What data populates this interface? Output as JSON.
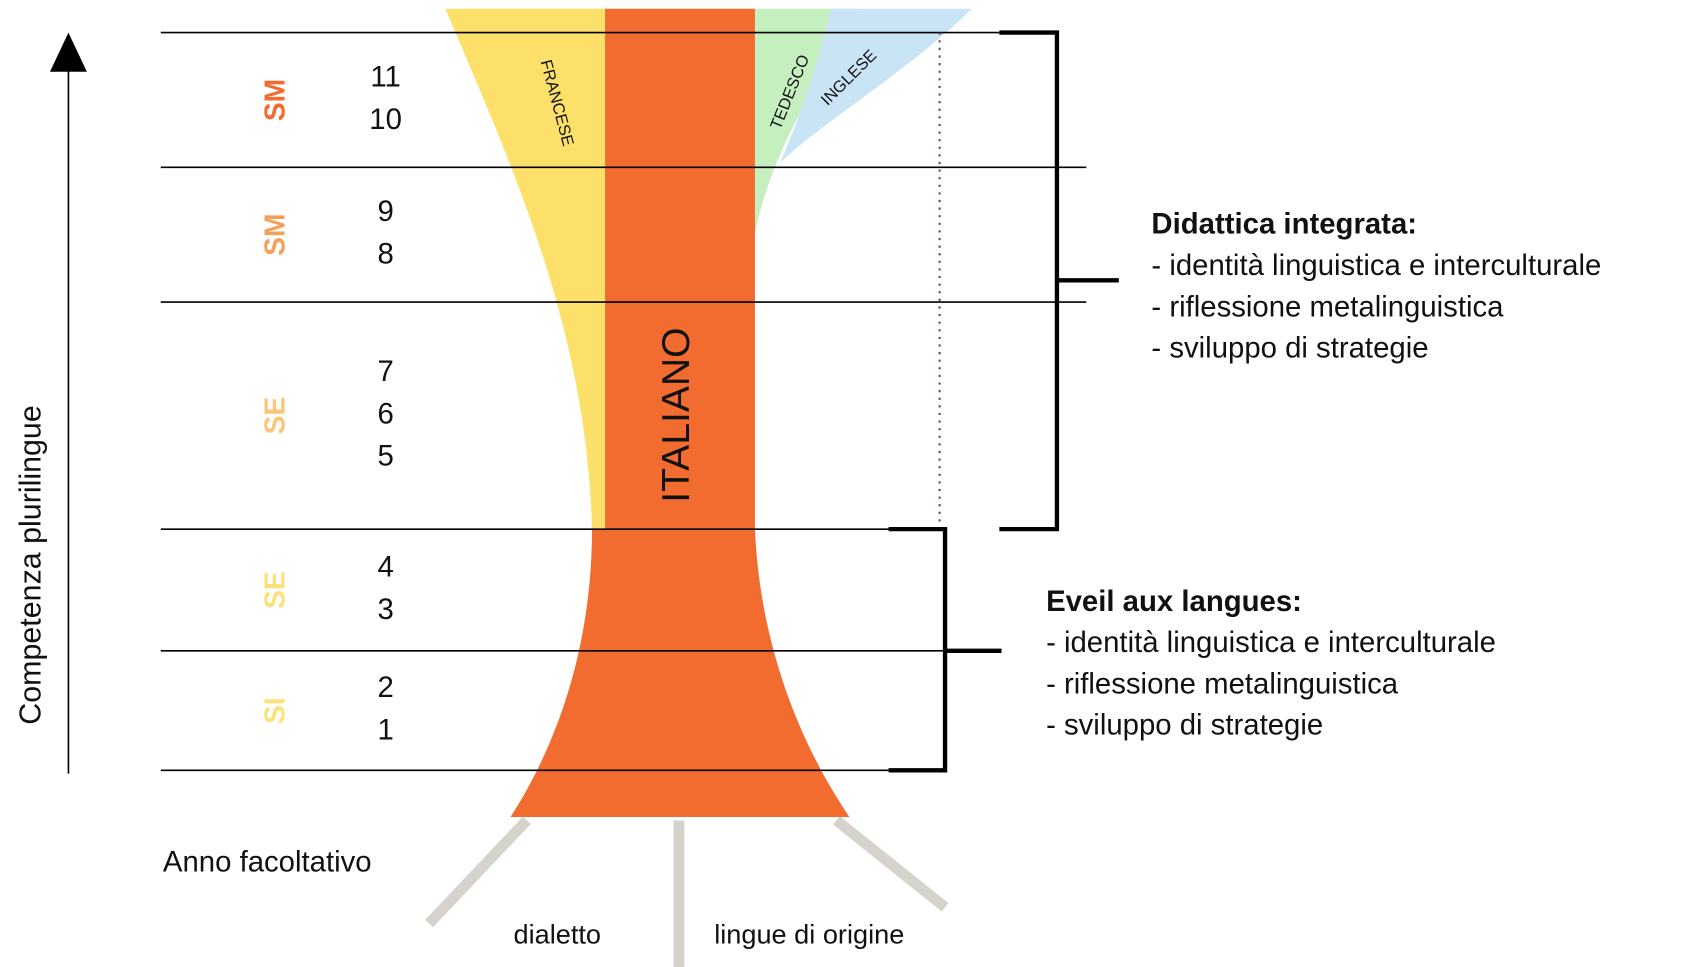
{
  "axis_label": "Competenza plurilingue",
  "levels": [
    {
      "school": "SM",
      "years": [
        "11",
        "10"
      ]
    },
    {
      "school": "SM",
      "years": [
        "9",
        "8"
      ]
    },
    {
      "school": "SE",
      "years": [
        "7",
        "6",
        "5"
      ]
    },
    {
      "school": "SE",
      "years": [
        "4",
        "3"
      ]
    },
    {
      "school": "SI",
      "years": [
        "2",
        "1"
      ]
    }
  ],
  "languages": {
    "main": "ITALIANO",
    "others": [
      "FRANCESE",
      "TEDESCO",
      "INGLESE"
    ]
  },
  "optional_year": "Anno facoltativo",
  "roots": [
    "dialetto",
    "lingue di origine"
  ],
  "brackets": [
    {
      "title": "Didattica integrata:",
      "items": [
        "- identità linguistica e interculturale",
        "- riflessione metalinguistica",
        "- sviluppo di strategie"
      ]
    },
    {
      "title": "Eveil aux langues:",
      "items": [
        "- identità linguistica e interculturale",
        "- riflessione metalinguistica",
        "- sviluppo di strategie"
      ]
    }
  ]
}
